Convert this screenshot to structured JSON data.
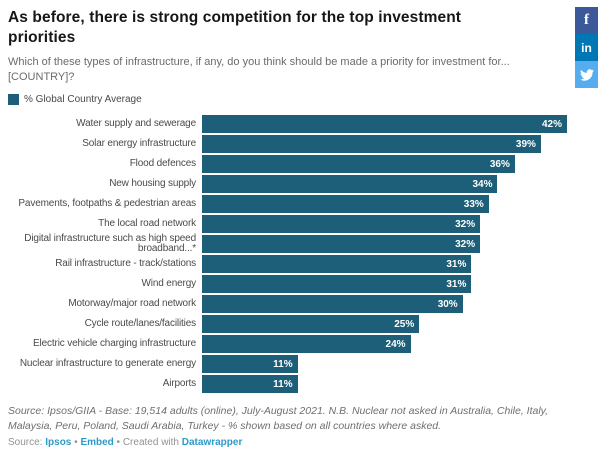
{
  "header": {
    "title": "As before, there is strong competition for the top investment priorities",
    "subtitle": "Which of these types of infrastructure, if any, do you think should be made a priority for investment for... [COUNTRY]?"
  },
  "social": [
    {
      "name": "facebook",
      "glyph": "f",
      "color": "#3b5998"
    },
    {
      "name": "linkedin",
      "glyph": "in",
      "color": "#0077b5"
    },
    {
      "name": "twitter",
      "glyph": "bird",
      "color": "#55acee"
    }
  ],
  "legend": {
    "label": "% Global Country Average",
    "color": "#1d5f78"
  },
  "chart_data": {
    "type": "bar",
    "orientation": "horizontal",
    "title": "As before, there is strong competition for the top investment priorities",
    "series_name": "% Global Country Average",
    "categories": [
      "Water supply and sewerage",
      "Solar energy infrastructure",
      "Flood defences",
      "New housing supply",
      "Pavements, footpaths & pedestrian areas",
      "The local road network",
      "Digital infrastructure such as high speed broadband...*",
      "Rail infrastructure - track/stations",
      "Wind energy",
      "Motorway/major road network",
      "Cycle route/lanes/facilities",
      "Electric vehicle charging infrastructure",
      "Nuclear infrastructure to generate energy",
      "Airports"
    ],
    "values": [
      42,
      39,
      36,
      34,
      33,
      32,
      32,
      31,
      31,
      30,
      25,
      24,
      11,
      11
    ],
    "unit": "%",
    "xlim": [
      0,
      42
    ],
    "bar_color": "#1d5f78",
    "value_label_color": "#ffffff",
    "grid": false,
    "legend_position": "top-left"
  },
  "footer": {
    "note": "Source: Ipsos/GIIA - Base: 19,514 adults (online), July-August 2021. N.B. Nuclear not asked in Australia, Chile, Italy, Malaysia, Peru, Poland, Saudi Arabia, Turkey - % shown based on all countries where asked.",
    "attribution": {
      "prefix": "Source: ",
      "source_link": "Ipsos",
      "separator": " • ",
      "embed_link": "Embed",
      "created_with": " • Created with ",
      "datawrapper_link": "Datawrapper",
      "link_color": "#2e9ac9"
    }
  }
}
